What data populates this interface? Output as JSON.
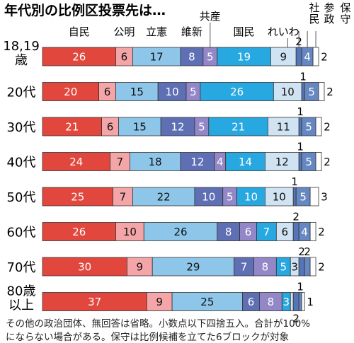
{
  "chart_data": {
    "type": "bar",
    "orientation": "horizontal",
    "stacked": true,
    "title": "年代別の比例区投票先は…",
    "parties": [
      "自民",
      "公明",
      "立憲",
      "維新",
      "共産",
      "国民",
      "れいわ",
      "社民",
      "参政",
      "保守"
    ],
    "colors": [
      "#e2473e",
      "#f4a5a7",
      "#8ec6ea",
      "#5e6fb3",
      "#9387c8",
      "#27a8e0",
      "#cfe3f3",
      "#5575b7",
      "#6688c2",
      "#ffffff"
    ],
    "categories": [
      "18,19歳",
      "20代",
      "30代",
      "40代",
      "50代",
      "60代",
      "70代",
      "80歳以上"
    ],
    "series": [
      {
        "name": "自民",
        "values": [
          26,
          20,
          21,
          24,
          25,
          26,
          30,
          37
        ]
      },
      {
        "name": "公明",
        "values": [
          6,
          6,
          6,
          7,
          7,
          10,
          9,
          9
        ]
      },
      {
        "name": "立憲",
        "values": [
          17,
          15,
          15,
          18,
          22,
          26,
          29,
          25
        ]
      },
      {
        "name": "維新",
        "values": [
          8,
          10,
          12,
          12,
          10,
          8,
          7,
          6
        ]
      },
      {
        "name": "共産",
        "values": [
          5,
          5,
          5,
          4,
          5,
          6,
          8,
          8
        ]
      },
      {
        "name": "国民",
        "values": [
          19,
          26,
          21,
          14,
          10,
          7,
          5,
          3
        ]
      },
      {
        "name": "れいわ",
        "values": [
          9,
          10,
          11,
          12,
          10,
          6,
          3,
          1
        ]
      },
      {
        "name": "社民",
        "values": [
          2,
          1,
          1,
          1,
          1,
          2,
          2,
          2
        ]
      },
      {
        "name": "参政",
        "values": [
          4,
          5,
          5,
          5,
          5,
          4,
          2,
          1
        ]
      },
      {
        "name": "保守",
        "values": [
          2,
          2,
          2,
          2,
          3,
          2,
          2,
          1
        ]
      }
    ],
    "xlim": [
      0,
      100
    ],
    "legend": "top"
  },
  "notes": [
    "その他の政治団体、無回答は省略。小数点以下四捨五入。合計が100%",
    "にならない場合がある。保守は比例候補を立てた6ブロックが対象"
  ]
}
